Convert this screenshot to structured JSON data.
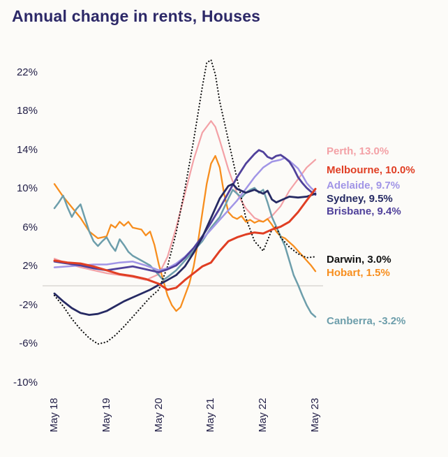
{
  "chart_data": {
    "type": "line",
    "title": "Annual change in rents, Houses",
    "x_unit": "months since May 2018",
    "xlim": [
      0,
      60
    ],
    "ylim": [
      -10,
      22
    ],
    "grid": "zero-line-only",
    "legend_position": "right-of-lines",
    "ytick_values": [
      22,
      18,
      14,
      10,
      6,
      2,
      -2,
      -6,
      -10
    ],
    "ytick_labels": [
      "22%",
      "18%",
      "14%",
      "10%",
      "6%",
      "2%",
      "-2%",
      "-6%",
      "-10%"
    ],
    "xtick_values": [
      0,
      12,
      24,
      36,
      48,
      60
    ],
    "xtick_labels": [
      "May 18",
      "May 19",
      "May 20",
      "May 21",
      "May 22",
      "May 23"
    ],
    "series": [
      {
        "name": "Perth",
        "label": "Perth, 13.0%",
        "final_value": 13.0,
        "color": "#f3a1a6",
        "line_style": "solid",
        "points": [
          [
            0,
            2.8
          ],
          [
            3,
            2.3
          ],
          [
            6,
            1.9
          ],
          [
            9,
            1.6
          ],
          [
            12,
            1.3
          ],
          [
            15,
            1.1
          ],
          [
            18,
            0.9
          ],
          [
            21,
            0.6
          ],
          [
            24,
            1.2
          ],
          [
            26,
            3
          ],
          [
            28,
            6
          ],
          [
            30,
            9.5
          ],
          [
            32,
            13
          ],
          [
            34,
            15.8
          ],
          [
            36,
            17
          ],
          [
            37,
            16.4
          ],
          [
            38,
            15
          ],
          [
            40,
            12
          ],
          [
            42,
            9.5
          ],
          [
            44,
            8
          ],
          [
            46,
            7
          ],
          [
            48,
            6.6
          ],
          [
            50,
            7.2
          ],
          [
            52,
            8.2
          ],
          [
            54,
            9.8
          ],
          [
            56,
            11
          ],
          [
            58,
            12.2
          ],
          [
            60,
            13
          ]
        ]
      },
      {
        "name": "Melbourne",
        "label": "Melbourne, 10.0%",
        "final_value": 10.0,
        "color": "#e03e23",
        "line_style": "solid",
        "points": [
          [
            0,
            2.6
          ],
          [
            3,
            2.4
          ],
          [
            6,
            2.3
          ],
          [
            9,
            2.0
          ],
          [
            12,
            1.6
          ],
          [
            15,
            1.2
          ],
          [
            18,
            1.0
          ],
          [
            21,
            0.7
          ],
          [
            24,
            0.2
          ],
          [
            26,
            -0.4
          ],
          [
            28,
            -0.2
          ],
          [
            30,
            0.6
          ],
          [
            32,
            1.3
          ],
          [
            34,
            2.0
          ],
          [
            36,
            2.4
          ],
          [
            38,
            3.6
          ],
          [
            40,
            4.6
          ],
          [
            42,
            5.0
          ],
          [
            44,
            5.3
          ],
          [
            46,
            5.5
          ],
          [
            48,
            5.4
          ],
          [
            50,
            5.8
          ],
          [
            52,
            6.1
          ],
          [
            54,
            6.6
          ],
          [
            56,
            7.6
          ],
          [
            58,
            8.8
          ],
          [
            60,
            10.0
          ]
        ]
      },
      {
        "name": "Adelaide",
        "label": "Adelaide, 9.7%",
        "final_value": 9.7,
        "color": "#a195e6",
        "line_style": "solid",
        "points": [
          [
            0,
            1.9
          ],
          [
            3,
            2.0
          ],
          [
            6,
            2.1
          ],
          [
            9,
            2.2
          ],
          [
            12,
            2.2
          ],
          [
            15,
            2.4
          ],
          [
            18,
            2.5
          ],
          [
            21,
            2.1
          ],
          [
            24,
            1.6
          ],
          [
            26,
            1.8
          ],
          [
            28,
            2.3
          ],
          [
            30,
            3.0
          ],
          [
            32,
            3.9
          ],
          [
            34,
            4.8
          ],
          [
            36,
            5.8
          ],
          [
            38,
            6.8
          ],
          [
            40,
            7.8
          ],
          [
            42,
            8.8
          ],
          [
            44,
            10.0
          ],
          [
            46,
            11.2
          ],
          [
            48,
            12.2
          ],
          [
            50,
            12.8
          ],
          [
            52,
            13.0
          ],
          [
            53,
            13.2
          ],
          [
            54,
            12.9
          ],
          [
            56,
            12.1
          ],
          [
            57,
            11.4
          ],
          [
            58,
            10.6
          ],
          [
            59,
            10.1
          ],
          [
            60,
            9.7
          ]
        ]
      },
      {
        "name": "Sydney",
        "label": "Sydney, 9.5%",
        "final_value": 9.5,
        "color": "#262a63",
        "line_style": "solid",
        "points": [
          [
            0,
            -0.8
          ],
          [
            2,
            -1.6
          ],
          [
            4,
            -2.3
          ],
          [
            6,
            -2.8
          ],
          [
            8,
            -3.0
          ],
          [
            10,
            -2.9
          ],
          [
            12,
            -2.6
          ],
          [
            14,
            -2.1
          ],
          [
            16,
            -1.6
          ],
          [
            18,
            -1.2
          ],
          [
            20,
            -0.8
          ],
          [
            22,
            -0.4
          ],
          [
            24,
            0.1
          ],
          [
            26,
            0.6
          ],
          [
            28,
            1.1
          ],
          [
            30,
            2.0
          ],
          [
            32,
            3.4
          ],
          [
            34,
            5.0
          ],
          [
            36,
            7.0
          ],
          [
            38,
            9.0
          ],
          [
            40,
            10.3
          ],
          [
            41,
            10.5
          ],
          [
            42,
            10.0
          ],
          [
            44,
            9.6
          ],
          [
            46,
            9.9
          ],
          [
            48,
            9.5
          ],
          [
            49,
            9.8
          ],
          [
            50,
            8.9
          ],
          [
            51,
            8.6
          ],
          [
            52,
            8.8
          ],
          [
            54,
            9.2
          ],
          [
            56,
            9.1
          ],
          [
            58,
            9.2
          ],
          [
            60,
            9.5
          ]
        ]
      },
      {
        "name": "Brisbane",
        "label": "Brisbane, 9.4%",
        "final_value": 9.4,
        "color": "#50419b",
        "line_style": "solid",
        "points": [
          [
            0,
            2.5
          ],
          [
            3,
            2.3
          ],
          [
            6,
            2.1
          ],
          [
            9,
            1.8
          ],
          [
            12,
            1.6
          ],
          [
            15,
            1.8
          ],
          [
            18,
            2.0
          ],
          [
            21,
            1.7
          ],
          [
            24,
            1.4
          ],
          [
            26,
            1.7
          ],
          [
            28,
            2.1
          ],
          [
            30,
            2.9
          ],
          [
            32,
            3.9
          ],
          [
            34,
            5.1
          ],
          [
            36,
            6.5
          ],
          [
            38,
            8.0
          ],
          [
            40,
            9.6
          ],
          [
            42,
            11.2
          ],
          [
            44,
            12.6
          ],
          [
            46,
            13.6
          ],
          [
            47,
            14.0
          ],
          [
            48,
            13.8
          ],
          [
            49,
            13.3
          ],
          [
            50,
            13.1
          ],
          [
            51,
            13.4
          ],
          [
            52,
            13.5
          ],
          [
            53,
            13.2
          ],
          [
            54,
            12.8
          ],
          [
            55,
            12.1
          ],
          [
            56,
            11.2
          ],
          [
            57,
            10.6
          ],
          [
            58,
            10.1
          ],
          [
            59,
            9.7
          ],
          [
            60,
            9.4
          ]
        ]
      },
      {
        "name": "Darwin",
        "label": "Darwin, 3.0%",
        "final_value": 3.0,
        "color": "#111111",
        "line_style": "dotted",
        "points": [
          [
            0,
            -1.0
          ],
          [
            2,
            -2.1
          ],
          [
            4,
            -3.4
          ],
          [
            6,
            -4.5
          ],
          [
            8,
            -5.4
          ],
          [
            10,
            -6.0
          ],
          [
            12,
            -5.8
          ],
          [
            14,
            -5.1
          ],
          [
            16,
            -4.2
          ],
          [
            18,
            -3.2
          ],
          [
            20,
            -2.2
          ],
          [
            22,
            -1.2
          ],
          [
            24,
            -0.4
          ],
          [
            26,
            2.0
          ],
          [
            28,
            5.5
          ],
          [
            30,
            10.0
          ],
          [
            32,
            15.0
          ],
          [
            34,
            20.5
          ],
          [
            35,
            23.0
          ],
          [
            36,
            23.3
          ],
          [
            37,
            21.8
          ],
          [
            38,
            19.0
          ],
          [
            40,
            15.0
          ],
          [
            42,
            11.0
          ],
          [
            44,
            7.0
          ],
          [
            46,
            4.6
          ],
          [
            48,
            3.6
          ],
          [
            50,
            5.8
          ],
          [
            51,
            6.1
          ],
          [
            52,
            5.0
          ],
          [
            54,
            4.0
          ],
          [
            56,
            3.3
          ],
          [
            58,
            2.9
          ],
          [
            60,
            3.0
          ]
        ]
      },
      {
        "name": "Hobart",
        "label": "Hobart, 1.5%",
        "final_value": 1.5,
        "color": "#f78e1e",
        "line_style": "solid",
        "points": [
          [
            0,
            10.5
          ],
          [
            2,
            9.2
          ],
          [
            4,
            8.1
          ],
          [
            6,
            7.0
          ],
          [
            8,
            5.6
          ],
          [
            10,
            4.9
          ],
          [
            12,
            5.1
          ],
          [
            13,
            6.3
          ],
          [
            14,
            6.0
          ],
          [
            15,
            6.6
          ],
          [
            16,
            6.2
          ],
          [
            17,
            6.6
          ],
          [
            18,
            6.0
          ],
          [
            20,
            5.8
          ],
          [
            21,
            5.2
          ],
          [
            22,
            5.6
          ],
          [
            23,
            4.2
          ],
          [
            24,
            2.2
          ],
          [
            25,
            0.6
          ],
          [
            26,
            -1.0
          ],
          [
            27,
            -2.0
          ],
          [
            28,
            -2.6
          ],
          [
            29,
            -2.2
          ],
          [
            30,
            -1.0
          ],
          [
            31,
            0.2
          ],
          [
            32,
            2.0
          ],
          [
            33,
            4.5
          ],
          [
            34,
            7.5
          ],
          [
            35,
            10.5
          ],
          [
            36,
            12.6
          ],
          [
            37,
            13.4
          ],
          [
            38,
            12.2
          ],
          [
            39,
            9.5
          ],
          [
            40,
            7.6
          ],
          [
            41,
            7.1
          ],
          [
            42,
            6.9
          ],
          [
            43,
            7.2
          ],
          [
            44,
            6.6
          ],
          [
            45,
            6.8
          ],
          [
            46,
            6.5
          ],
          [
            47,
            6.7
          ],
          [
            48,
            6.6
          ],
          [
            49,
            6.9
          ],
          [
            50,
            6.3
          ],
          [
            51,
            5.6
          ],
          [
            52,
            5.1
          ],
          [
            53,
            4.9
          ],
          [
            54,
            4.5
          ],
          [
            55,
            4.1
          ],
          [
            56,
            3.6
          ],
          [
            57,
            3.1
          ],
          [
            58,
            2.6
          ],
          [
            59,
            2.1
          ],
          [
            60,
            1.5
          ]
        ]
      },
      {
        "name": "Canberra",
        "label": "Canberra, -3.2%",
        "final_value": -3.2,
        "color": "#6d9eab",
        "line_style": "solid",
        "points": [
          [
            0,
            8.0
          ],
          [
            1,
            8.6
          ],
          [
            2,
            9.3
          ],
          [
            3,
            8.1
          ],
          [
            4,
            7.1
          ],
          [
            5,
            7.9
          ],
          [
            6,
            8.4
          ],
          [
            7,
            7.0
          ],
          [
            8,
            5.6
          ],
          [
            9,
            4.6
          ],
          [
            10,
            4.1
          ],
          [
            11,
            4.6
          ],
          [
            12,
            5.0
          ],
          [
            13,
            4.2
          ],
          [
            14,
            3.6
          ],
          [
            15,
            4.8
          ],
          [
            16,
            4.2
          ],
          [
            17,
            3.5
          ],
          [
            18,
            3.1
          ],
          [
            20,
            2.6
          ],
          [
            22,
            2.1
          ],
          [
            23,
            1.6
          ],
          [
            24,
            1.1
          ],
          [
            25,
            0.6
          ],
          [
            26,
            0.9
          ],
          [
            28,
            1.6
          ],
          [
            30,
            2.6
          ],
          [
            32,
            3.6
          ],
          [
            34,
            4.6
          ],
          [
            36,
            6.0
          ],
          [
            38,
            7.1
          ],
          [
            40,
            9.0
          ],
          [
            41,
            9.9
          ],
          [
            42,
            9.5
          ],
          [
            43,
            9.1
          ],
          [
            44,
            9.6
          ],
          [
            45,
            9.9
          ],
          [
            46,
            10.1
          ],
          [
            47,
            9.6
          ],
          [
            48,
            9.9
          ],
          [
            49,
            8.6
          ],
          [
            50,
            7.1
          ],
          [
            51,
            6.1
          ],
          [
            52,
            5.1
          ],
          [
            53,
            4.1
          ],
          [
            54,
            2.6
          ],
          [
            55,
            1.1
          ],
          [
            56,
            0.1
          ],
          [
            57,
            -1.0
          ],
          [
            58,
            -2.0
          ],
          [
            59,
            -2.8
          ],
          [
            60,
            -3.2
          ]
        ]
      }
    ]
  }
}
